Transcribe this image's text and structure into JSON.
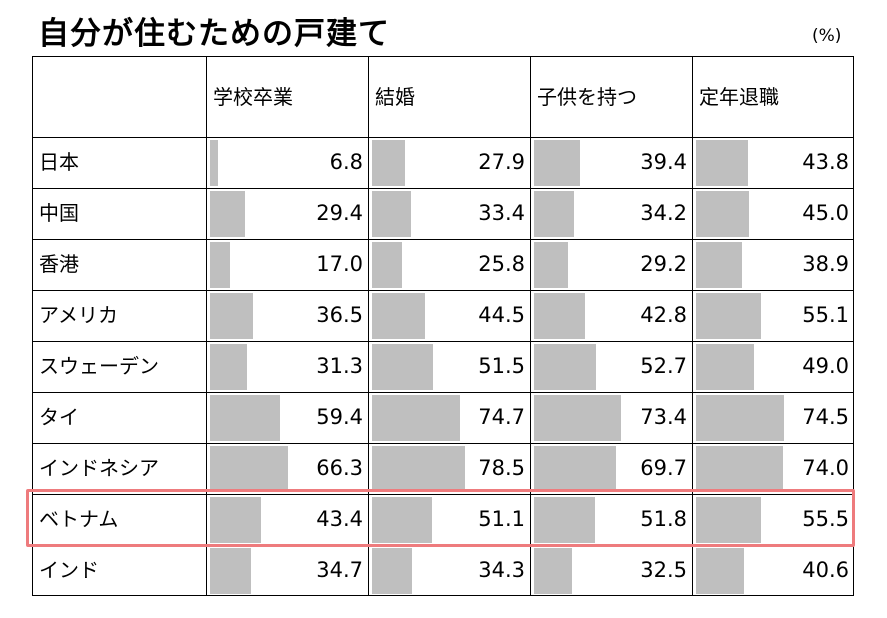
{
  "title": "自分が住むための戸建て",
  "unit": "(%)",
  "chart_data": {
    "type": "table",
    "title": "自分が住むための戸建て",
    "unit": "(%)",
    "columns": [
      "学校卒業",
      "結婚",
      "子供を持つ",
      "定年退職"
    ],
    "rows": [
      {
        "label": "日本",
        "values": [
          "6.8",
          "27.9",
          "39.4",
          "43.8"
        ]
      },
      {
        "label": "中国",
        "values": [
          "29.4",
          "33.4",
          "34.2",
          "45.0"
        ]
      },
      {
        "label": "香港",
        "values": [
          "17.0",
          "25.8",
          "29.2",
          "38.9"
        ]
      },
      {
        "label": "アメリカ",
        "values": [
          "36.5",
          "44.5",
          "42.8",
          "55.1"
        ]
      },
      {
        "label": "スウェーデン",
        "values": [
          "31.3",
          "51.5",
          "52.7",
          "49.0"
        ]
      },
      {
        "label": "タイ",
        "values": [
          "59.4",
          "74.7",
          "73.4",
          "74.5"
        ]
      },
      {
        "label": "インドネシア",
        "values": [
          "66.3",
          "78.5",
          "69.7",
          "74.0"
        ]
      },
      {
        "label": "ベトナム",
        "values": [
          "43.4",
          "51.1",
          "51.8",
          "55.5"
        ]
      },
      {
        "label": "インド",
        "values": [
          "34.7",
          "34.3",
          "32.5",
          "40.6"
        ]
      }
    ],
    "highlighted_row": "ベトナム",
    "highlight_color": "#ee7b7d",
    "bar_color": "#bfbfbf",
    "bar_scale_max": 100
  }
}
